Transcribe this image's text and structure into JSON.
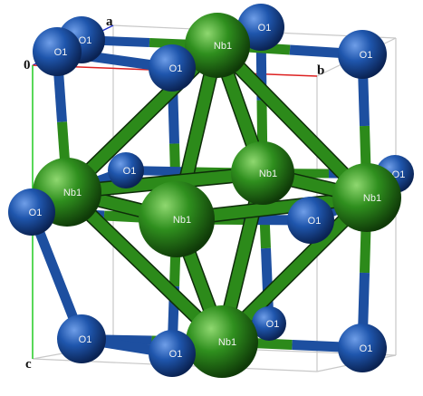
{
  "axis_labels": {
    "origin": "0",
    "a": "a",
    "b": "b",
    "c": "c"
  },
  "atom_labels": {
    "oxygen": "O1",
    "niobium": "Nb1"
  },
  "colors": {
    "oxygen": "#1a4f9c",
    "niobium": "#2e8a1c",
    "bond_green": "#2c8a1a",
    "bond_blue": "#1d4fa0",
    "cell_edge": "#c8c8c8",
    "axis_a": "#2233cc",
    "axis_b": "#dd2222",
    "axis_c": "#22cc22"
  }
}
